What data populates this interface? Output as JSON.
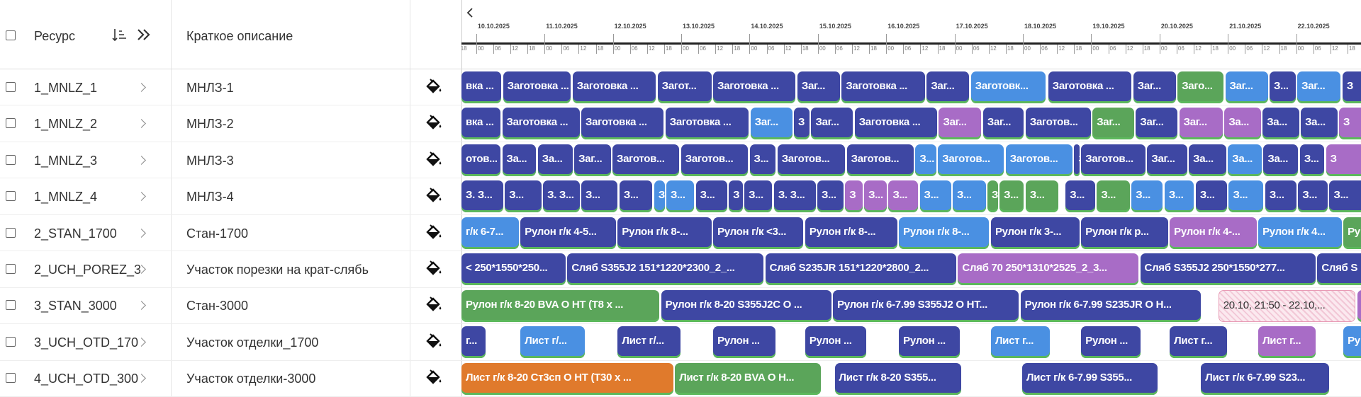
{
  "header": {
    "resource": "Ресурс",
    "description": "Краткое описание"
  },
  "timeline": {
    "dates": [
      "10.10.2025",
      "11.10.2025",
      "12.10.2025",
      "13.10.2025",
      "14.10.2025",
      "15.10.2025",
      "16.10.2025",
      "17.10.2025",
      "18.10.2025",
      "19.10.2025",
      "20.10.2025",
      "21.10.2025",
      "22.10.2025"
    ],
    "hours": [
      "00",
      "06",
      "12",
      "18"
    ]
  },
  "rows": [
    {
      "resource": "1_MNLZ_1",
      "description": "МНЛЗ-1",
      "tasks": [
        {
          "label": "вка ...",
          "color": "#3e47a3"
        },
        {
          "label": "Заготовка ...",
          "color": "#3e47a3"
        },
        {
          "label": "Заготовка ...",
          "color": "#3e47a3"
        },
        {
          "label": "Загот...",
          "color": "#3e47a3"
        },
        {
          "label": "Заготовка ...",
          "color": "#3e47a3"
        },
        {
          "label": "Заг...",
          "color": "#3e47a3"
        },
        {
          "label": "Заготовка ...",
          "color": "#3e47a3"
        },
        {
          "label": "Заг...",
          "color": "#3e47a3"
        },
        {
          "label": "Заготовк...",
          "color": "#4a90e2"
        },
        {
          "label": "Заготовка ...",
          "color": "#3e47a3"
        },
        {
          "label": "Заг...",
          "color": "#3e47a3"
        },
        {
          "label": "Заго...",
          "color": "#5ba55a"
        },
        {
          "label": "Заг...",
          "color": "#4a90e2"
        },
        {
          "label": "З...",
          "color": "#3e47a3"
        },
        {
          "label": "Заг...",
          "color": "#4a90e2"
        },
        {
          "label": "З",
          "color": "#3e47a3"
        }
      ]
    },
    {
      "resource": "1_MNLZ_2",
      "description": "МНЛЗ-2",
      "tasks": [
        {
          "label": "вка ...",
          "color": "#3e47a3"
        },
        {
          "label": "Заготовка ...",
          "color": "#3e47a3"
        },
        {
          "label": "Заготовка ...",
          "color": "#3e47a3"
        },
        {
          "label": "Заготовка ...",
          "color": "#3e47a3"
        },
        {
          "label": "Заг...",
          "color": "#4a90e2"
        },
        {
          "label": "З",
          "color": "#3e47a3"
        },
        {
          "label": "Заг...",
          "color": "#3e47a3"
        },
        {
          "label": "Заготовка ...",
          "color": "#3e47a3"
        },
        {
          "label": "Заг...",
          "color": "#a86cc6"
        },
        {
          "label": "Заг...",
          "color": "#3e47a3"
        },
        {
          "label": "Заготов...",
          "color": "#3e47a3"
        },
        {
          "label": "Заг...",
          "color": "#5ba55a"
        },
        {
          "label": "Заг...",
          "color": "#3e47a3"
        },
        {
          "label": "Заг...",
          "color": "#a86cc6"
        },
        {
          "label": "За...",
          "color": "#a86cc6"
        },
        {
          "label": "За...",
          "color": "#3e47a3"
        },
        {
          "label": "За...",
          "color": "#3e47a3"
        },
        {
          "label": "З",
          "color": "#a86cc6"
        }
      ]
    },
    {
      "resource": "1_MNLZ_3",
      "description": "МНЛЗ-3",
      "tasks": [
        {
          "label": "отов...",
          "color": "#3e47a3"
        },
        {
          "label": "За...",
          "color": "#3e47a3"
        },
        {
          "label": "За...",
          "color": "#3e47a3"
        },
        {
          "label": "Заг...",
          "color": "#3e47a3"
        },
        {
          "label": "Заготов...",
          "color": "#3e47a3"
        },
        {
          "label": "Заготов...",
          "color": "#3e47a3"
        },
        {
          "label": "З...",
          "color": "#3e47a3"
        },
        {
          "label": "Заготов...",
          "color": "#3e47a3"
        },
        {
          "label": "Заготов...",
          "color": "#3e47a3"
        },
        {
          "label": "З...",
          "color": "#4a90e2"
        },
        {
          "label": "Заготов...",
          "color": "#4a90e2"
        },
        {
          "label": "Заготов...",
          "color": "#4a90e2"
        },
        {
          "label": "З",
          "color": "#3e47a3"
        },
        {
          "label": "Заготов...",
          "color": "#3e47a3"
        },
        {
          "label": "Заг...",
          "color": "#3e47a3"
        },
        {
          "label": "За...",
          "color": "#3e47a3"
        },
        {
          "label": "За...",
          "color": "#4a90e2"
        },
        {
          "label": "За...",
          "color": "#3e47a3"
        },
        {
          "label": "З...",
          "color": "#3e47a3"
        },
        {
          "label": "З",
          "color": "#a86cc6"
        }
      ]
    },
    {
      "resource": "1_MNLZ_4",
      "description": "МНЛЗ-4",
      "tasks": [
        {
          "label": "З. З...",
          "color": "#3e47a3"
        },
        {
          "label": "З...",
          "color": "#3e47a3"
        },
        {
          "label": "З. З...",
          "color": "#3e47a3"
        },
        {
          "label": "З...",
          "color": "#3e47a3"
        },
        {
          "label": "З...",
          "color": "#3e47a3"
        },
        {
          "label": "З",
          "color": "#4a90e2"
        },
        {
          "label": "З...",
          "color": "#4a90e2"
        },
        {
          "label": "З...",
          "color": "#3e47a3"
        },
        {
          "label": "З",
          "color": "#3e47a3"
        },
        {
          "label": "З...",
          "color": "#3e47a3"
        },
        {
          "label": "З. З...",
          "color": "#3e47a3"
        },
        {
          "label": "З...",
          "color": "#3e47a3"
        },
        {
          "label": "З",
          "color": "#a86cc6"
        },
        {
          "label": "З...",
          "color": "#a86cc6"
        },
        {
          "label": "З...",
          "color": "#a86cc6"
        },
        {
          "label": "З...",
          "color": "#4a90e2"
        },
        {
          "label": "З...",
          "color": "#4a90e2"
        },
        {
          "label": "З",
          "color": "#5ba55a"
        },
        {
          "label": "З...",
          "color": "#5ba55a"
        },
        {
          "label": "З...",
          "color": "#5ba55a"
        },
        {
          "label": "З...",
          "color": "#3e47a3"
        },
        {
          "label": "З...",
          "color": "#5ba55a"
        },
        {
          "label": "З...",
          "color": "#4a90e2"
        },
        {
          "label": "З...",
          "color": "#4a90e2"
        },
        {
          "label": "З...",
          "color": "#3e47a3"
        },
        {
          "label": "З...",
          "color": "#4a90e2"
        },
        {
          "label": "З...",
          "color": "#3e47a3"
        },
        {
          "label": "З...",
          "color": "#3e47a3"
        },
        {
          "label": "З...",
          "color": "#3e47a3"
        }
      ]
    },
    {
      "resource": "2_STAN_1700",
      "description": "Стан-1700",
      "tasks": [
        {
          "label": "г/к 6-7...",
          "color": "#4a90e2"
        },
        {
          "label": "Рулон г/к 4-5...",
          "color": "#3e47a3"
        },
        {
          "label": "Рулон г/к 8-...",
          "color": "#3e47a3"
        },
        {
          "label": "Рулон г/к <3...",
          "color": "#3e47a3"
        },
        {
          "label": "Рулон г/к 8-...",
          "color": "#3e47a3"
        },
        {
          "label": "Рулон г/к 8-...",
          "color": "#4a90e2"
        },
        {
          "label": "Рулон г/к 3-...",
          "color": "#3e47a3"
        },
        {
          "label": "Рулон г/к р...",
          "color": "#3e47a3"
        },
        {
          "label": "Рулон г/к 4-...",
          "color": "#a86cc6"
        },
        {
          "label": "Рулон г/к 4...",
          "color": "#4a90e2"
        },
        {
          "label": "Ру",
          "color": "#5ba55a"
        }
      ]
    },
    {
      "resource": "2_UCH_POREZ_3",
      "description": "Участок порезки на крат-слябь",
      "tasks": [
        {
          "label": "< 250*1550*250...",
          "color": "#3e47a3"
        },
        {
          "label": "Сляб S355J2 151*1220*2300_2_...",
          "color": "#3e47a3"
        },
        {
          "label": "Сляб S235JR 151*1220*2800_2...",
          "color": "#3e47a3"
        },
        {
          "label": "Сляб 70 250*1310*2525_2_3...",
          "color": "#a86cc6"
        },
        {
          "label": "Сляб S355J2 250*1550*277...",
          "color": "#3e47a3"
        },
        {
          "label": "Сляб S",
          "color": "#3e47a3"
        }
      ]
    },
    {
      "resource": "3_STAN_3000",
      "description": "Стан-3000",
      "tasks": [
        {
          "label": "Рулон г/к 8-20 BVA O HT (T8 x ...",
          "color": "#5ba55a"
        },
        {
          "label": "Рулон г/к 8-20 S355J2C O ...",
          "color": "#3e47a3"
        },
        {
          "label": "Рулон г/к 6-7.99 S355J2 O HT...",
          "color": "#3e47a3"
        },
        {
          "label": "Рулон г/к 6-7.99 S235JR O H...",
          "color": "#3e47a3"
        },
        {
          "label": "20.10, 21:50 - 22.10,...",
          "color": "#f7d7e3"
        },
        {
          "label": "Р",
          "color": "#a86cc6"
        }
      ]
    },
    {
      "resource": "3_UCH_OTD_170",
      "description": "Участок отделки_1700",
      "tasks": [
        {
          "label": "г...",
          "color": "#3e47a3"
        },
        {
          "label": "Лист г/...",
          "color": "#4a90e2"
        },
        {
          "label": "Лист г/...",
          "color": "#3e47a3"
        },
        {
          "label": "Рулон ...",
          "color": "#3e47a3"
        },
        {
          "label": "Рулон ...",
          "color": "#3e47a3"
        },
        {
          "label": "Рулон ...",
          "color": "#3e47a3"
        },
        {
          "label": "Лист г...",
          "color": "#4a90e2"
        },
        {
          "label": "Рулон ...",
          "color": "#3e47a3"
        },
        {
          "label": "Лист г...",
          "color": "#3e47a3"
        },
        {
          "label": "Лист г...",
          "color": "#a86cc6"
        },
        {
          "label": "Ру",
          "color": "#4a90e2"
        }
      ]
    },
    {
      "resource": "4_UCH_OTD_300",
      "description": "Участок отделки-3000",
      "tasks": [
        {
          "label": "Лист г/к 8-20 Ст3сп O HT (T30 x ...",
          "color": "#e07a2c"
        },
        {
          "label": "Лист г/к 8-20 BVA O H...",
          "color": "#5ba55a"
        },
        {
          "label": "Лист г/к 8-20 S355...",
          "color": "#3e47a3"
        },
        {
          "label": "Лист г/к 6-7.99 S355...",
          "color": "#3e47a3"
        },
        {
          "label": "Лист г/к 6-7.99 S23...",
          "color": "#3e47a3"
        }
      ]
    }
  ]
}
